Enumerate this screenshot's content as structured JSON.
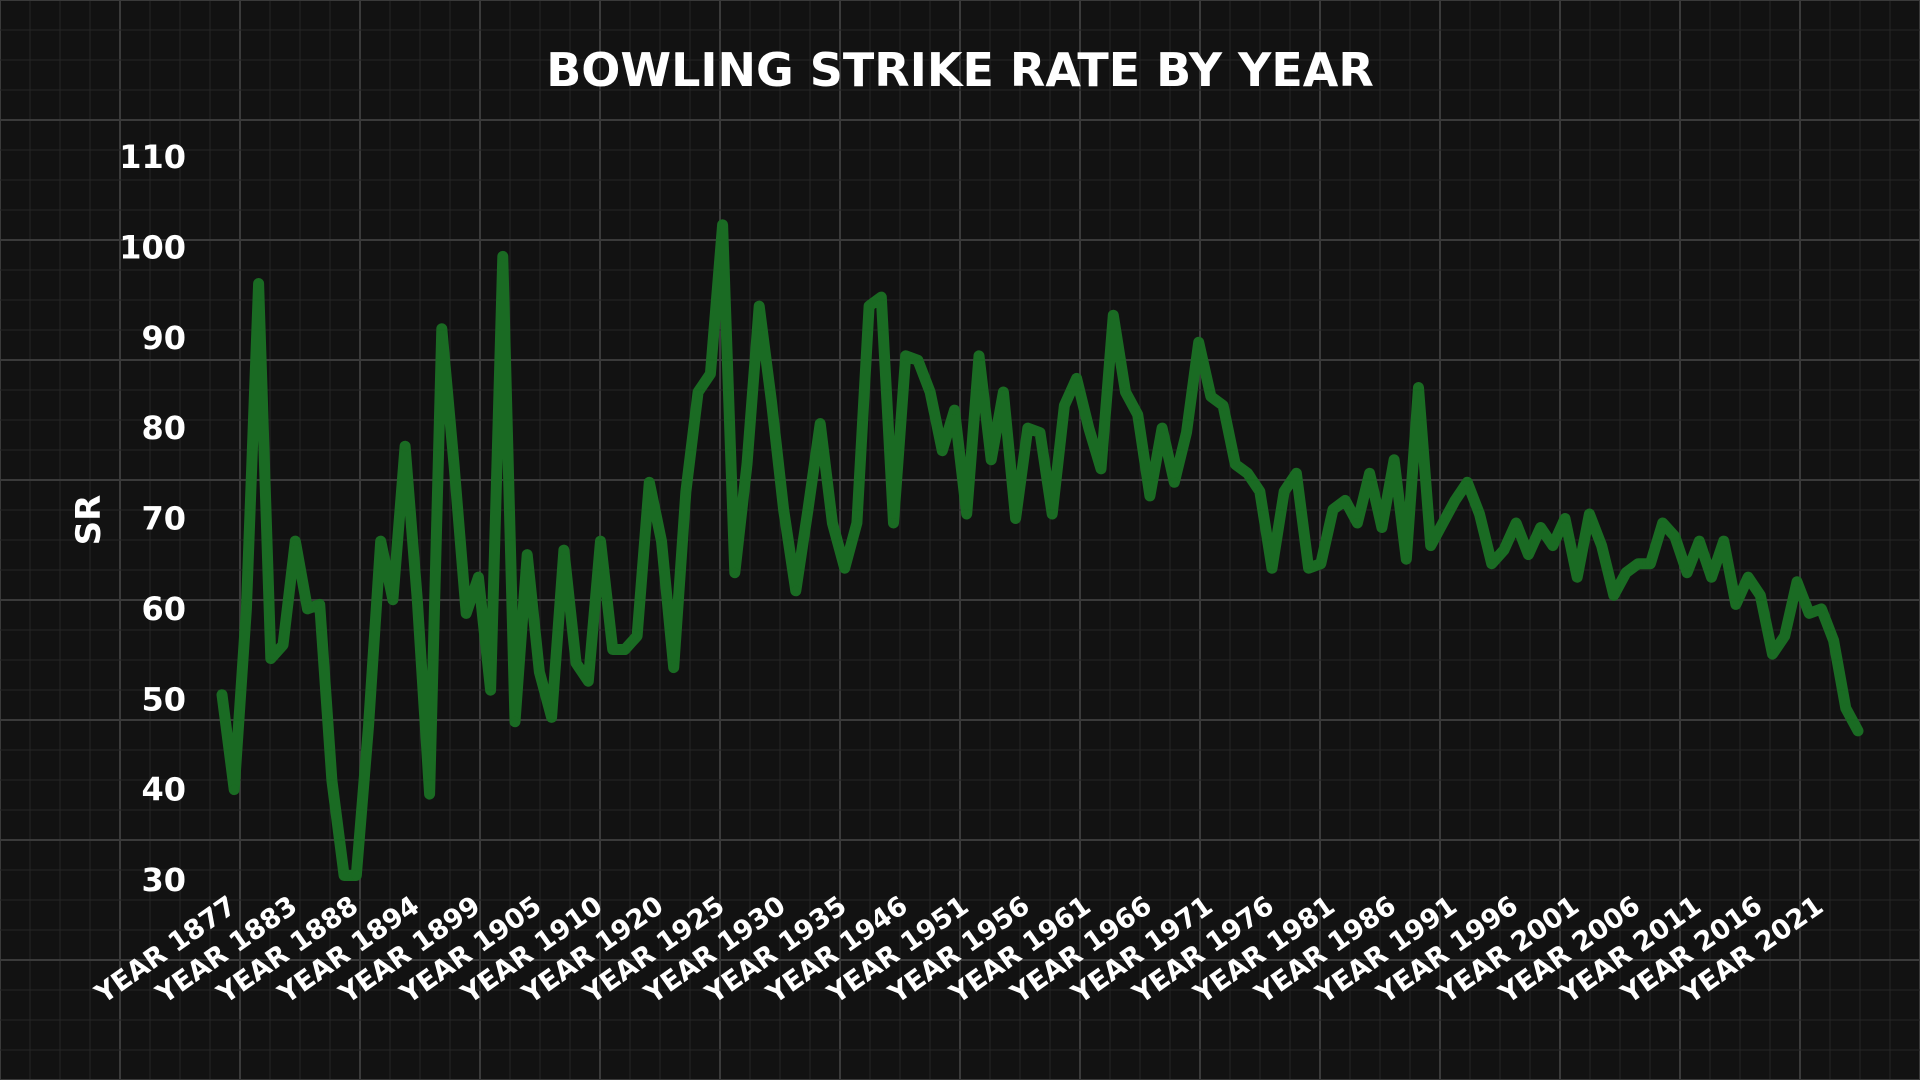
{
  "chart_data": {
    "type": "line",
    "title": "BOWLING STRIKE RATE BY YEAR",
    "xlabel": "",
    "ylabel": "SR",
    "ylim": [
      30,
      110
    ],
    "yticks": [
      30,
      40,
      50,
      60,
      70,
      80,
      90,
      100,
      110
    ],
    "grid": true,
    "legend": "none",
    "colors": {
      "background": "#121212",
      "line": "#1a6b23",
      "text": "#ffffff",
      "grid": "#3a3a3a"
    },
    "xtick_labels": [
      "YEAR 1877",
      "YEAR 1883",
      "YEAR 1888",
      "YEAR 1894",
      "YEAR 1899",
      "YEAR 1905",
      "YEAR 1910",
      "YEAR 1920",
      "YEAR 1925",
      "YEAR 1930",
      "YEAR 1935",
      "YEAR 1946",
      "YEAR 1951",
      "YEAR 1956",
      "YEAR 1961",
      "YEAR 1966",
      "YEAR 1971",
      "YEAR 1976",
      "YEAR 1981",
      "YEAR 1986",
      "YEAR 1991",
      "YEAR 1996",
      "YEAR 2001",
      "YEAR 2006",
      "YEAR 2011",
      "YEAR 2016",
      "YEAR 2021"
    ],
    "xtick_every": 5,
    "series": [
      {
        "values": [
          50.5,
          40,
          60,
          96,
          54.5,
          56,
          67.5,
          60,
          60.5,
          41,
          30.5,
          30.5,
          47,
          67.5,
          61,
          78,
          61,
          39.5,
          91,
          76,
          59.5,
          63.5,
          51,
          99,
          47.5,
          66,
          53,
          48,
          66.5,
          54,
          52,
          67.5,
          55.5,
          55.5,
          57,
          74,
          67.5,
          53.5,
          73,
          84,
          86,
          102.5,
          64,
          76,
          93.5,
          83,
          71,
          62,
          71,
          80.5,
          69.5,
          64.5,
          69.5,
          93.5,
          94.5,
          69.5,
          88,
          87.5,
          84,
          77.5,
          82,
          70.5,
          88,
          76.5,
          84,
          70,
          80,
          79.5,
          70.5,
          82.5,
          85.5,
          80,
          75.5,
          92.5,
          84,
          81.5,
          72.5,
          80,
          74,
          79.5,
          89.5,
          83.5,
          82.5,
          76,
          75,
          73,
          64.5,
          73,
          75,
          64.5,
          65,
          71,
          72,
          69.5,
          75,
          69,
          76.5,
          65.5,
          84.5,
          67,
          69.5,
          72,
          74,
          70.5,
          65,
          66.5,
          69.5,
          66,
          69,
          67,
          70,
          63.5,
          70.5,
          67,
          61.5,
          64,
          65,
          65,
          69.5,
          68,
          64,
          67.5,
          63.5,
          67.5,
          60.5,
          63.5,
          61.5,
          55,
          57,
          63,
          59.5,
          60,
          56.5,
          49,
          46.5
        ]
      }
    ]
  }
}
